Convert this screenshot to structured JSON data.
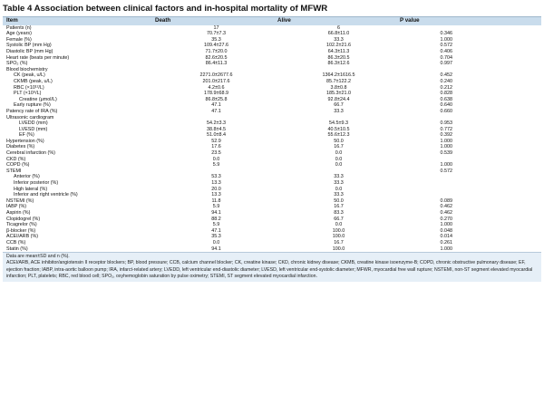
{
  "table": {
    "title": "Table 4 Association between clinical factors and in-hospital mortality of MFWR",
    "headers": {
      "item": "Item",
      "death": "Death",
      "alive": "Alive",
      "p": "P value"
    },
    "rows": [
      {
        "item": "Patients (n)",
        "indent": 0,
        "death": "17",
        "alive": "6",
        "p": ""
      },
      {
        "item": "Age (years)",
        "indent": 0,
        "death": "70.7±7.3",
        "alive": "66.8±11.0",
        "p": "0.346"
      },
      {
        "item": "Female (%)",
        "indent": 0,
        "death": "35.3",
        "alive": "33.3",
        "p": "1.000"
      },
      {
        "item": "Systolic BP (mm Hg)",
        "indent": 0,
        "death": "109.4±27.6",
        "alive": "102.2±21.6",
        "p": "0.572"
      },
      {
        "item": "Diastolic BP (mm Hg)",
        "indent": 0,
        "death": "71.7±20.0",
        "alive": "64.3±11.3",
        "p": "0.406"
      },
      {
        "item": "Heart rate (beats per minute)",
        "indent": 0,
        "death": "82.6±20.5",
        "alive": "86.3±20.5",
        "p": "0.704"
      },
      {
        "item": "SPO₂ (%)",
        "indent": 0,
        "death": "86.4±11.3",
        "alive": "86.3±12.6",
        "p": "0.997"
      },
      {
        "item": "Blood biochemistry",
        "indent": 0,
        "death": "",
        "alive": "",
        "p": ""
      },
      {
        "item": "CK (peak, u/L)",
        "indent": 1,
        "death": "2271.0±2677.6",
        "alive": "1364.2±1616.5",
        "p": "0.452"
      },
      {
        "item": "CKMB (peak, u/L)",
        "indent": 1,
        "death": "201.0±217.6",
        "alive": "85.7±122.2",
        "p": "0.240"
      },
      {
        "item": "RBC (×10¹²/L)",
        "indent": 1,
        "death": "4.2±0.6",
        "alive": "3.8±0.8",
        "p": "0.212"
      },
      {
        "item": "PLT (×10⁹/L)",
        "indent": 1,
        "death": "178.9±68.9",
        "alive": "185.3±21.0",
        "p": "0.828"
      },
      {
        "item": "Creatine (μmol/L)",
        "indent": 2,
        "death": "86.8±25.8",
        "alive": "92.8±24.4",
        "p": "0.638"
      },
      {
        "item": "Early rupture (%)",
        "indent": 1,
        "death": "47.1",
        "alive": "66.7",
        "p": "0.640"
      },
      {
        "item": "Patency rate of IRA (%)",
        "indent": 0,
        "death": "47.1",
        "alive": "33.3",
        "p": "0.660"
      },
      {
        "item": "Ultrasonic cardiogram",
        "indent": 0,
        "death": "",
        "alive": "",
        "p": ""
      },
      {
        "item": "LVEDD (mm)",
        "indent": 2,
        "death": "54.2±3.3",
        "alive": "54.5±9.3",
        "p": "0.953"
      },
      {
        "item": "LVESD (mm)",
        "indent": 2,
        "death": "38.8±4.5",
        "alive": "40.5±10.5",
        "p": "0.772"
      },
      {
        "item": "EF (%)",
        "indent": 2,
        "death": "51.0±8.4",
        "alive": "55.6±12.3",
        "p": "0.392"
      },
      {
        "item": "Hypertension (%)",
        "indent": 0,
        "death": "52.9",
        "alive": "50.0",
        "p": "1.000"
      },
      {
        "item": "Diabetes (%)",
        "indent": 0,
        "death": "17.6",
        "alive": "16.7",
        "p": "1.000"
      },
      {
        "item": "Cerebral infarction (%)",
        "indent": 0,
        "death": "23.5",
        "alive": "0.0",
        "p": "0.539"
      },
      {
        "item": "CKD (%)",
        "indent": 0,
        "death": "0.0",
        "alive": "0.0",
        "p": ""
      },
      {
        "item": "COPD (%)",
        "indent": 0,
        "death": "5.9",
        "alive": "0.0",
        "p": "1.000"
      },
      {
        "item": "STEMI",
        "indent": 0,
        "death": "",
        "alive": "",
        "p": "0.572"
      },
      {
        "item": "Anterior (%)",
        "indent": 1,
        "death": "53.3",
        "alive": "33.3",
        "p": ""
      },
      {
        "item": "Inferior posterior (%)",
        "indent": 1,
        "death": "13.3",
        "alive": "33.3",
        "p": ""
      },
      {
        "item": "High lateral (%)",
        "indent": 1,
        "death": "20.0",
        "alive": "0.0",
        "p": ""
      },
      {
        "item": "Inferior and right ventricle (%)",
        "indent": 1,
        "death": "13.3",
        "alive": "33.3",
        "p": ""
      },
      {
        "item": "NSTEMI (%)",
        "indent": 0,
        "death": "11.8",
        "alive": "50.0",
        "p": "0.089"
      },
      {
        "item": "IABP (%)",
        "indent": 0,
        "death": "5.9",
        "alive": "16.7",
        "p": "0.462"
      },
      {
        "item": "Aspirin (%)",
        "indent": 0,
        "death": "94.1",
        "alive": "83.3",
        "p": "0.462"
      },
      {
        "item": "Clopidogrel (%)",
        "indent": 0,
        "death": "88.2",
        "alive": "66.7",
        "p": "0.270"
      },
      {
        "item": "Ticagrelor (%)",
        "indent": 0,
        "death": "5.9",
        "alive": "0.0",
        "p": "1.000"
      },
      {
        "item": "β-blocker (%)",
        "indent": 0,
        "death": "47.1",
        "alive": "100.0",
        "p": "0.048"
      },
      {
        "item": "ACEI/ARB (%)",
        "indent": 0,
        "death": "35.3",
        "alive": "100.0",
        "p": "0.014"
      },
      {
        "item": "CCB (%)",
        "indent": 0,
        "death": "0.0",
        "alive": "16.7",
        "p": "0.261"
      },
      {
        "item": "Statin (%)",
        "indent": 0,
        "death": "94.1",
        "alive": "100.0",
        "p": "1.000"
      }
    ]
  },
  "footer": {
    "note": "Data are mean±SD and n (%).",
    "abbreviations": "ACEI/ARB, ACE inhibitor/angiotensin II receptor blockers; BP, blood pressure; CCB, calcium channel blocker; CK, creatine kinase; CKD, chronic kidney disease; CKMB, creatine kinase isoenzyme-B; COPD, chronic obstructive pulmonary disease; EF, ejection fraction; IABP, intra-aortic balloon pump; IRA, infarct-related artery; LVEDD, left ventricular end-diastolic diameter; LVESD, left ventricular end-systolic diameter; MFWR, myocardial free wall rupture; NSTEMI, non-ST segment elevated myocardial infarction; PLT, platelets; RBC, red blood cell; SPO₂, oxyhemoglobin saturation by pulse oximetry; STEMI, ST segment elevated myocardial infarction."
  }
}
